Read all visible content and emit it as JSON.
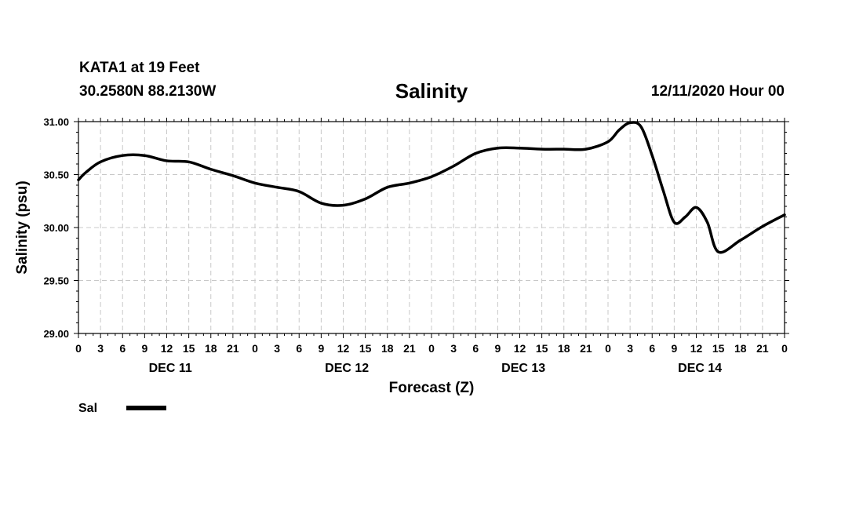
{
  "header": {
    "station": "KATA1 at 19 Feet",
    "coords": "30.2580N 88.2130W",
    "title": "Salinity",
    "run": "12/11/2020 Hour 00"
  },
  "chart_data": {
    "type": "line",
    "title": "Salinity",
    "xlabel": "Forecast (Z)",
    "ylabel": "Salinity (psu)",
    "ylim": [
      29.0,
      31.0
    ],
    "yticks": [
      "29.00",
      "29.50",
      "30.00",
      "30.50",
      "31.00"
    ],
    "xlim": [
      0,
      96
    ],
    "x_tick_labels": [
      "0",
      "3",
      "6",
      "9",
      "12",
      "15",
      "18",
      "21",
      "0",
      "3",
      "6",
      "9",
      "12",
      "15",
      "18",
      "21",
      "0",
      "3",
      "6",
      "9",
      "12",
      "15",
      "18",
      "21",
      "0",
      "3",
      "6",
      "9",
      "12",
      "15",
      "18",
      "21",
      "0"
    ],
    "day_labels": [
      "DEC 11",
      "DEC 12",
      "DEC 13",
      "DEC 14"
    ],
    "grid": true,
    "legend": {
      "placement": "bottom-left",
      "entries": [
        {
          "label": "Sal",
          "color": "#000000"
        }
      ]
    },
    "series": [
      {
        "name": "Sal",
        "color": "#000000",
        "x": [
          0,
          1,
          3,
          6,
          9,
          12,
          15,
          18,
          21,
          24,
          27,
          30,
          33,
          36,
          39,
          42,
          45,
          48,
          51,
          54,
          57,
          60,
          63,
          66,
          69,
          72,
          73.5,
          75,
          76.5,
          78,
          79.5,
          81,
          82.5,
          84,
          85.5,
          87,
          90,
          93,
          96
        ],
        "values": [
          30.45,
          30.52,
          30.62,
          30.68,
          30.68,
          30.63,
          30.62,
          30.55,
          30.49,
          30.42,
          30.38,
          30.34,
          30.23,
          30.21,
          30.27,
          30.38,
          30.42,
          30.48,
          30.58,
          30.7,
          30.75,
          30.75,
          30.74,
          30.74,
          30.74,
          30.81,
          30.92,
          30.99,
          30.95,
          30.68,
          30.35,
          30.05,
          30.1,
          30.19,
          30.05,
          29.77,
          29.88,
          30.01,
          30.12
        ]
      }
    ]
  }
}
